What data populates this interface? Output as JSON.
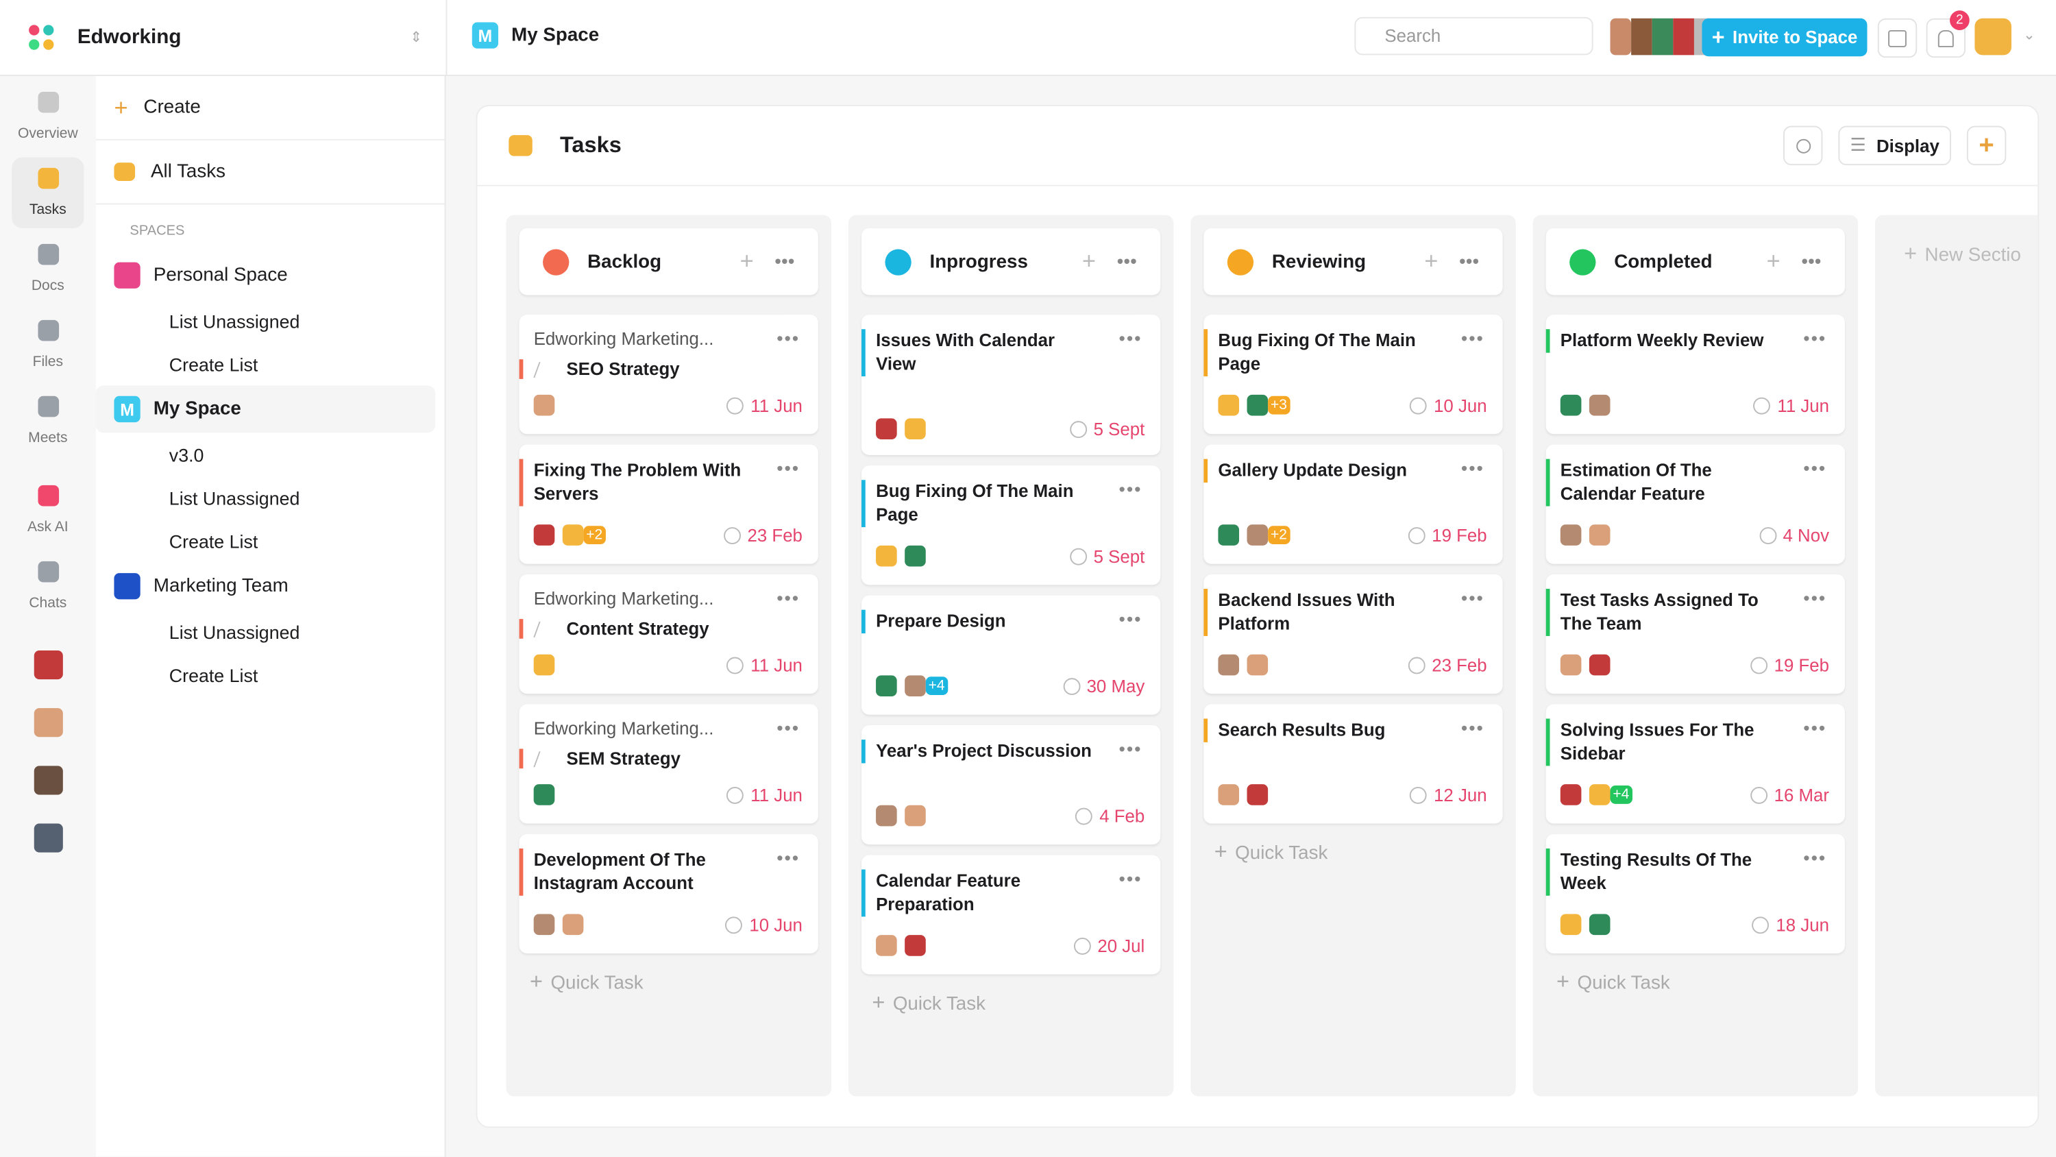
{
  "workspace": {
    "name": "Edworking"
  },
  "rail": [
    {
      "label": "Overview"
    },
    {
      "label": "Tasks"
    },
    {
      "label": "Docs"
    },
    {
      "label": "Files"
    },
    {
      "label": "Meets"
    },
    {
      "label": "Ask AI"
    },
    {
      "label": "Chats"
    }
  ],
  "sidebar": {
    "create": "Create",
    "all_tasks": "All Tasks",
    "spaces_heading": "SPACES",
    "spaces": [
      {
        "name": "Personal Space",
        "items": [
          "List Unassigned",
          "Create List"
        ]
      },
      {
        "name": "My Space",
        "badge": "M",
        "items": [
          "v3.0",
          "List Unassigned",
          "Create List"
        ]
      },
      {
        "name": "Marketing Team",
        "items": [
          "List Unassigned",
          "Create List"
        ]
      }
    ]
  },
  "header": {
    "space_badge": "M",
    "space_name": "My Space",
    "search": "Search",
    "invite": "Invite to Space",
    "notifications": "2"
  },
  "board": {
    "title": "Tasks",
    "display": "Display",
    "quick_task": "Quick Task",
    "new_section": "New Sectio",
    "columns": [
      {
        "name": "Backlog",
        "color": "#f26b50",
        "cards": [
          {
            "parent": "Edworking Marketing...",
            "title": "SEO Strategy",
            "date": "11 Jun"
          },
          {
            "title": "Fixing The Problem With Servers",
            "date": "23 Feb",
            "extra": "+2"
          },
          {
            "parent": "Edworking Marketing...",
            "title": "Content Strategy",
            "date": "11 Jun"
          },
          {
            "parent": "Edworking Marketing...",
            "title": "SEM Strategy",
            "date": "11 Jun"
          },
          {
            "title": "Development Of The Instagram Account",
            "date": "10 Jun"
          }
        ]
      },
      {
        "name": "Inprogress",
        "color": "#1ab6e0",
        "cards": [
          {
            "title": "Issues With Calendar View",
            "date": "5 Sept"
          },
          {
            "title": "Bug Fixing Of The Main Page",
            "date": "5 Sept"
          },
          {
            "title": "Prepare Design",
            "date": "30 May",
            "extra": "+4"
          },
          {
            "title": "Year's Project Discussion",
            "date": "4 Feb"
          },
          {
            "title": "Calendar Feature Preparation",
            "date": "20 Jul"
          }
        ]
      },
      {
        "name": "Reviewing",
        "color": "#f5a623",
        "cards": [
          {
            "title": "Bug Fixing Of The Main Page",
            "date": "10 Jun",
            "extra": "+3"
          },
          {
            "title": "Gallery Update Design",
            "date": "19 Feb",
            "extra": "+2"
          },
          {
            "title": "Backend Issues With Platform",
            "date": "23 Feb"
          },
          {
            "title": "Search Results Bug",
            "date": "12 Jun"
          }
        ]
      },
      {
        "name": "Completed",
        "color": "#22c55e",
        "cards": [
          {
            "title": "Platform Weekly Review",
            "date": "11 Jun"
          },
          {
            "title": "Estimation Of The Calendar Feature",
            "date": "4 Nov"
          },
          {
            "title": "Test Tasks Assigned To The Team",
            "date": "19 Feb"
          },
          {
            "title": "Solving Issues For The Sidebar",
            "date": "16 Mar",
            "extra": "+4"
          },
          {
            "title": "Testing Results Of The Week",
            "date": "18 Jun"
          }
        ]
      }
    ]
  }
}
